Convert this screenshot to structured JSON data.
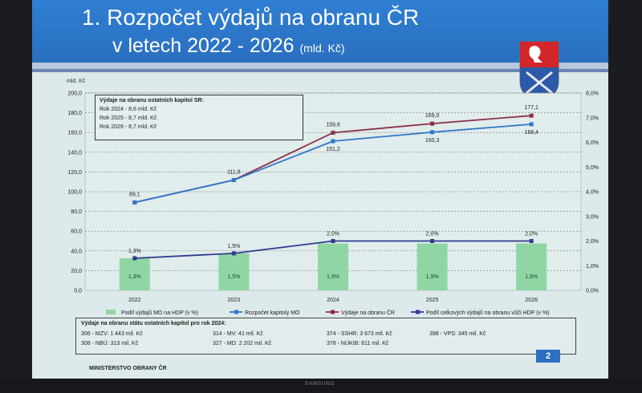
{
  "slide": {
    "title_line1": "1.  Rozpočet výdajů na obranu ČR",
    "title_line2": "v letech 2022 - 2026",
    "title_unit": "(mld. Kč)",
    "page_number": "2",
    "footer": "MINISTERSTVO OBRANY ČR",
    "brand": "SAMSUNG"
  },
  "info_box": {
    "title": "Výdaje na obranu ostatních kapitol SR:",
    "lines": [
      "Rok 2024 - 8,6 mld. Kč",
      "Rok 2025 - 8,7 mld. Kč",
      "Rok 2026 - 8,7 mld. Kč"
    ]
  },
  "bottom_box": {
    "title": "Výdaje na obranu státu ostatních kapitol pro rok 2024:",
    "items": [
      {
        "label": "306 - MZV:",
        "value": "1 443 mil. Kč"
      },
      {
        "label": "308 - NBÚ:",
        "value": "313 mil. Kč"
      },
      {
        "label": "314 - MV:",
        "value": "41 mil. Kč"
      },
      {
        "label": "327 - MD:",
        "value": "2 202 mil. Kč"
      },
      {
        "label": "374 - SSHR:",
        "value": "3 673 mil. Kč"
      },
      {
        "label": "378 - NÚKIB:",
        "value": "611 mil. Kč"
      },
      {
        "label": "398 - VPS:",
        "value": "345 mil. Kč"
      }
    ]
  },
  "chart_data": {
    "type": "bar",
    "categories": [
      "2022",
      "2023",
      "2024",
      "2025",
      "2026"
    ],
    "ylabel": "mld. Kč",
    "ylim": [
      0,
      200
    ],
    "y_ticks": [
      "0,0",
      "20,0",
      "40,0",
      "60,0",
      "80,0",
      "100,0",
      "120,0",
      "140,0",
      "160,0",
      "180,0",
      "200,0"
    ],
    "y2lim": [
      0,
      8
    ],
    "y2_ticks": [
      "0,0%",
      "1,0%",
      "2,0%",
      "3,0%",
      "4,0%",
      "5,0%",
      "6,0%",
      "7,0%",
      "8,0%"
    ],
    "grid": true,
    "legend_position": "bottom",
    "series": [
      {
        "name": "Podíl výdajů MO na HDP (v %)",
        "kind": "bar",
        "axis": "right",
        "values": [
          1.3,
          1.5,
          1.9,
          1.9,
          1.9
        ],
        "labels": [
          "1,3%",
          "1,5%",
          "1,9%",
          "1,9%",
          "1,9%"
        ],
        "color": "#8fd6a4"
      },
      {
        "name": "Rozpočet kapitoly MO",
        "kind": "line",
        "axis": "left",
        "values": [
          89.1,
          111.8,
          151.2,
          160.3,
          168.4
        ],
        "labels": [
          "",
          "",
          "151,2",
          "160,3",
          "168,4"
        ],
        "color": "#2f78c8"
      },
      {
        "name": "Výdaje na obranu ČR",
        "kind": "line",
        "axis": "left",
        "values": [
          89.1,
          111.8,
          159.8,
          169.0,
          177.1
        ],
        "labels": [
          "89,1",
          "111,8",
          "159,8",
          "169,0",
          "177,1"
        ],
        "color": "#8c2f4a"
      },
      {
        "name": "Podíl celkových výdajů na obranu vůči HDP (v %)",
        "kind": "line",
        "axis": "right",
        "values": [
          1.3,
          1.5,
          2.0,
          2.0,
          2.0
        ],
        "labels": [
          "1,3%",
          "1,5%",
          "2,0%",
          "2,0%",
          "2,0%"
        ],
        "color": "#2d3b8f"
      }
    ]
  }
}
